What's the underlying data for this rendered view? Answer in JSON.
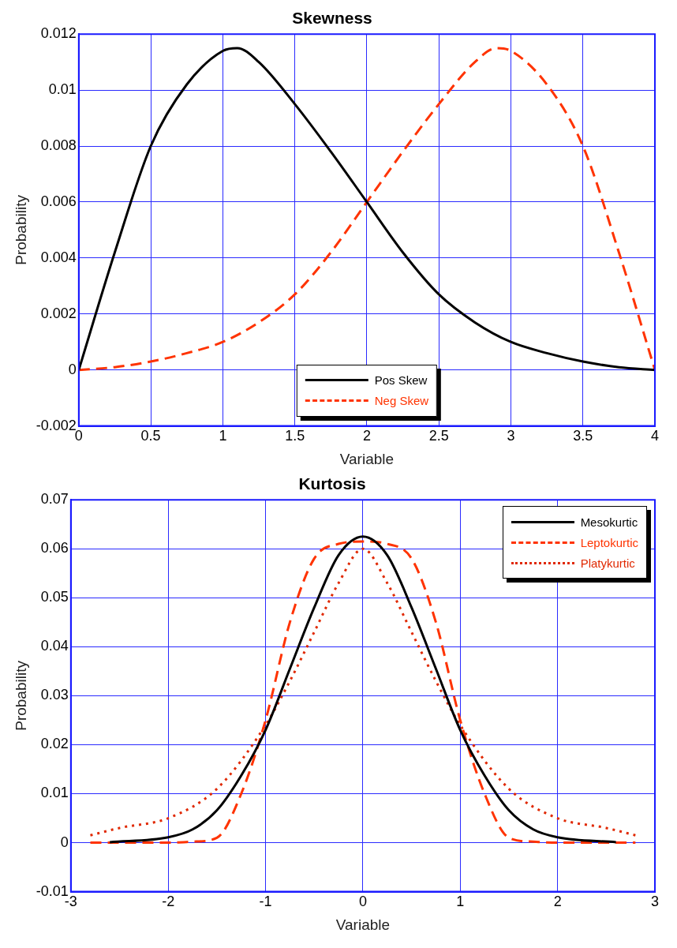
{
  "chart_data": [
    {
      "type": "line",
      "title": "Skewness",
      "xlabel": "Variable",
      "ylabel": "Probability",
      "xlim": [
        0,
        4
      ],
      "xticks": [
        0,
        0.5,
        1,
        1.5,
        2,
        2.5,
        3,
        3.5,
        4
      ],
      "ylim": [
        -0.002,
        0.012
      ],
      "yticks": [
        -0.002,
        0,
        0.002,
        0.004,
        0.006,
        0.008,
        0.01,
        0.012
      ],
      "grid": true,
      "legend": "bottom",
      "marker": "none",
      "series": [
        {
          "name": "Pos Skew",
          "color": "#000000",
          "line_style": "solid",
          "x": [
            0,
            0.25,
            0.5,
            0.75,
            1,
            1.1,
            1.25,
            1.5,
            1.75,
            2,
            2.25,
            2.5,
            2.75,
            3,
            3.25,
            3.5,
            3.75,
            4
          ],
          "values": [
            0,
            0.0042,
            0.008,
            0.0102,
            0.0114,
            0.0115,
            0.011,
            0.0095,
            0.0078,
            0.006,
            0.0042,
            0.0027,
            0.0017,
            0.001,
            0.0006,
            0.0003,
            0.0001,
            0
          ]
        },
        {
          "name": "Neg Skew",
          "color": "#ff3300",
          "line_style": "dashed",
          "x": [
            0,
            0.25,
            0.5,
            0.75,
            1,
            1.25,
            1.5,
            1.75,
            2,
            2.25,
            2.5,
            2.75,
            2.9,
            3,
            3.25,
            3.5,
            3.75,
            4
          ],
          "values": [
            0,
            0.0001,
            0.0003,
            0.0006,
            0.001,
            0.0017,
            0.0027,
            0.0042,
            0.006,
            0.0078,
            0.0095,
            0.011,
            0.0115,
            0.0114,
            0.0102,
            0.008,
            0.0042,
            0
          ]
        }
      ]
    },
    {
      "type": "line",
      "title": "Kurtosis",
      "xlabel": "Variable",
      "ylabel": "Probability",
      "xlim": [
        -3,
        3
      ],
      "xticks": [
        -3,
        -2,
        -1,
        0,
        1,
        2,
        3
      ],
      "ylim": [
        -0.01,
        0.07
      ],
      "yticks": [
        -0.01,
        0,
        0.01,
        0.02,
        0.03,
        0.04,
        0.05,
        0.06,
        0.07
      ],
      "grid": true,
      "legend": "top right",
      "marker": "none",
      "series": [
        {
          "name": "Mesokurtic",
          "color": "#000000",
          "line_style": "solid",
          "x": [
            -2.6,
            -2,
            -1.75,
            -1.5,
            -1.25,
            -1,
            -0.75,
            -0.5,
            -0.25,
            0,
            0.25,
            0.5,
            0.75,
            1,
            1.25,
            1.5,
            1.75,
            2,
            2.6
          ],
          "values": [
            0.0001,
            0.0011,
            0.0027,
            0.0066,
            0.0137,
            0.023,
            0.0355,
            0.048,
            0.0587,
            0.0625,
            0.0587,
            0.048,
            0.0355,
            0.023,
            0.0137,
            0.0066,
            0.0027,
            0.0011,
            0.0001
          ]
        },
        {
          "name": "Leptokurtic",
          "color": "#ff3300",
          "line_style": "dashed",
          "x": [
            -2.8,
            -2,
            -1.75,
            -1.5,
            -1.25,
            -1,
            -0.75,
            -0.5,
            -0.25,
            0,
            0.25,
            0.5,
            0.75,
            1,
            1.25,
            1.5,
            1.75,
            2,
            2.8
          ],
          "values": [
            0,
            0,
            0.0002,
            0.001,
            0.01,
            0.025,
            0.045,
            0.058,
            0.061,
            0.0615,
            0.061,
            0.058,
            0.045,
            0.025,
            0.01,
            0.001,
            0.0002,
            0,
            0
          ]
        },
        {
          "name": "Platykurtic",
          "color": "#e02800",
          "line_style": "dotted",
          "x": [
            -2.8,
            -2.5,
            -2,
            -1.5,
            -1,
            -0.75,
            -0.5,
            -0.25,
            0,
            0.25,
            0.5,
            0.75,
            1,
            1.5,
            2,
            2.5,
            2.8
          ],
          "values": [
            0.0015,
            0.003,
            0.005,
            0.011,
            0.024,
            0.033,
            0.043,
            0.053,
            0.06,
            0.053,
            0.043,
            0.033,
            0.024,
            0.011,
            0.005,
            0.003,
            0.0015
          ]
        }
      ]
    }
  ]
}
